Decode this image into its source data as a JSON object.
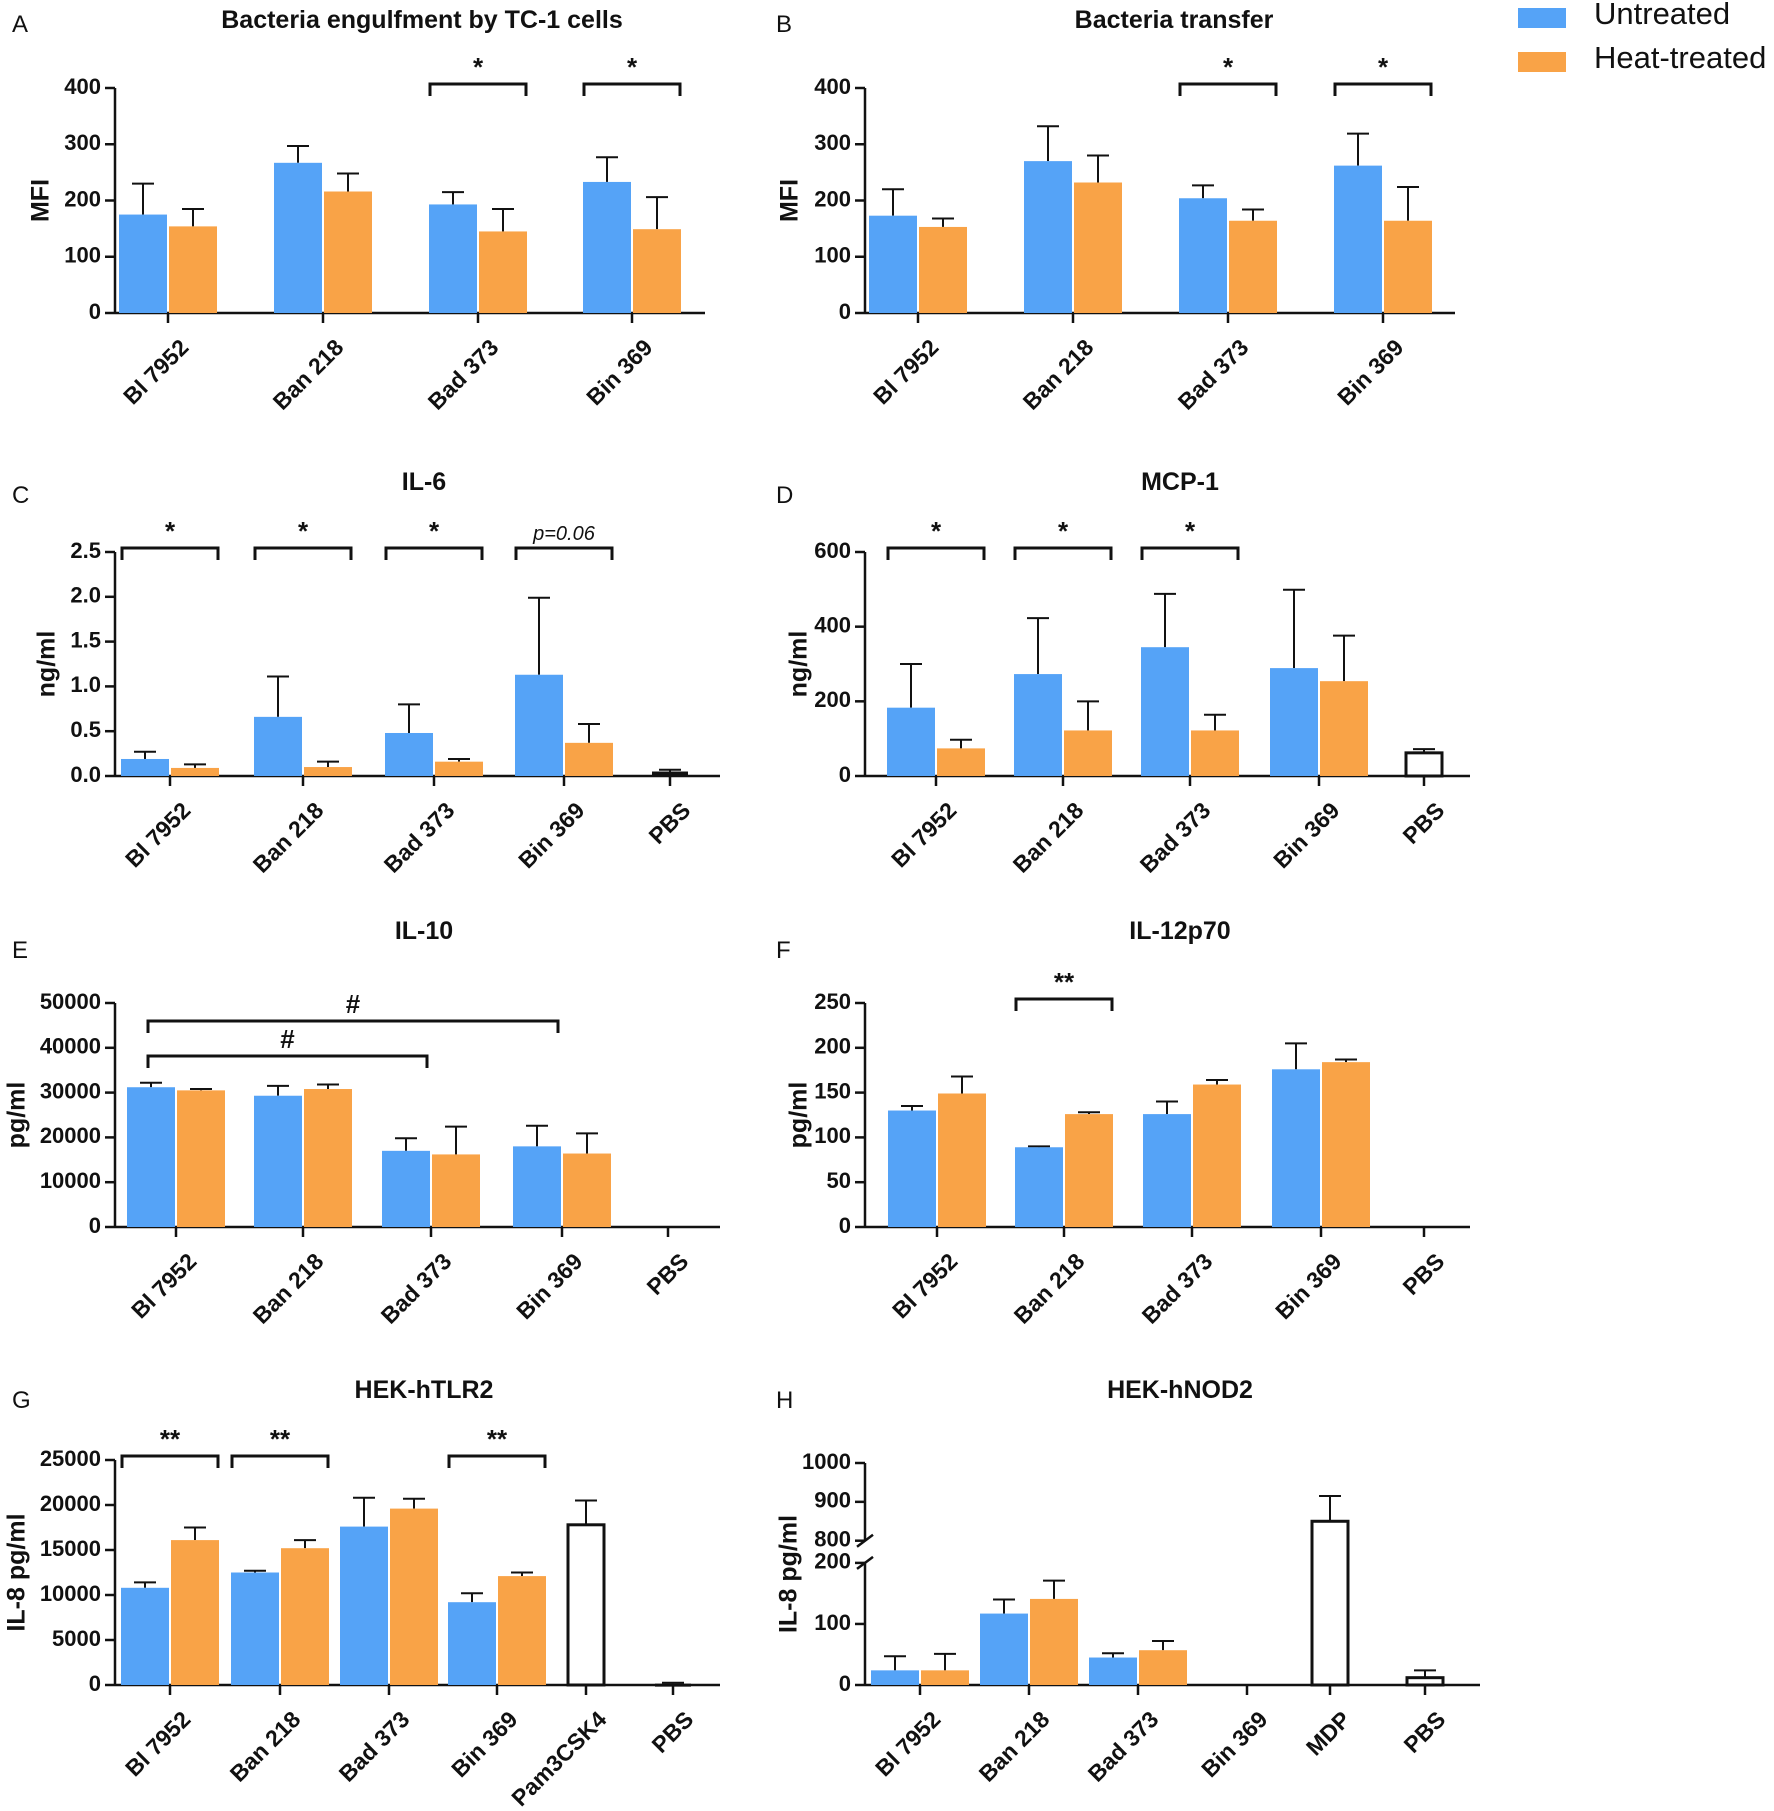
{
  "colors": {
    "untreated": "#55a3f7",
    "heat_treated": "#f9a347",
    "control": "#ffffff",
    "text": "#111111"
  },
  "legend": {
    "untreated_label": "Untreated",
    "heat_treated_label": "Heat-treated"
  },
  "chart_data": [
    {
      "panel": "A",
      "type": "bar",
      "title": "Bacteria engulfment by TC-1 cells",
      "ylabel": "MFI",
      "ylim": [
        0,
        400
      ],
      "yticks": [
        "0",
        "100",
        "200",
        "300",
        "400"
      ],
      "ytick_values": [
        0,
        100,
        200,
        300,
        400
      ],
      "categories": [
        "Bl 7952",
        "Ban 218",
        "Bad 373",
        "Bin 369"
      ],
      "series": [
        {
          "name": "Untreated",
          "values": [
            175,
            267,
            193,
            233
          ],
          "errors": [
            55,
            30,
            22,
            44
          ]
        },
        {
          "name": "Heat-treated",
          "values": [
            154,
            216,
            145,
            149
          ],
          "errors": [
            31,
            32,
            40,
            57
          ]
        }
      ],
      "annotations": [
        {
          "category": 2,
          "label": "*"
        },
        {
          "category": 3,
          "label": "*"
        }
      ]
    },
    {
      "panel": "B",
      "type": "bar",
      "title": "Bacteria transfer",
      "ylabel": "MFI",
      "ylim": [
        0,
        400
      ],
      "yticks": [
        "0",
        "100",
        "200",
        "300",
        "400"
      ],
      "ytick_values": [
        0,
        100,
        200,
        300,
        400
      ],
      "categories": [
        "Bl 7952",
        "Ban 218",
        "Bad 373",
        "Bin 369"
      ],
      "series": [
        {
          "name": "Untreated",
          "values": [
            173,
            270,
            204,
            262
          ],
          "errors": [
            47,
            62,
            23,
            57
          ]
        },
        {
          "name": "Heat-treated",
          "values": [
            153,
            232,
            164,
            164
          ],
          "errors": [
            15,
            48,
            20,
            60
          ]
        }
      ],
      "annotations": [
        {
          "category": 2,
          "label": "*"
        },
        {
          "category": 3,
          "label": "*"
        }
      ]
    },
    {
      "panel": "C",
      "type": "bar",
      "title": "IL-6",
      "ylabel": "ng/ml",
      "ylim": [
        0,
        2.5
      ],
      "yticks": [
        "0.0",
        "0.5",
        "1.0",
        "1.5",
        "2.0",
        "2.5"
      ],
      "ytick_values": [
        0,
        0.5,
        1,
        1.5,
        2,
        2.5
      ],
      "categories": [
        "Bl 7952",
        "Ban 218",
        "Bad 373",
        "Bin 369",
        "PBS"
      ],
      "series": [
        {
          "name": "Untreated",
          "values": [
            0.19,
            0.66,
            0.48,
            1.13,
            null
          ],
          "errors": [
            0.08,
            0.45,
            0.32,
            0.86,
            null
          ]
        },
        {
          "name": "Heat-treated",
          "values": [
            0.09,
            0.1,
            0.16,
            0.37,
            null
          ],
          "errors": [
            0.04,
            0.06,
            0.03,
            0.21,
            null
          ]
        }
      ],
      "controls": [
        {
          "category": 4,
          "value": 0.05,
          "error": 0.02,
          "style": "filled"
        }
      ],
      "annotations": [
        {
          "category": 0,
          "label": "*"
        },
        {
          "category": 1,
          "label": "*"
        },
        {
          "category": 2,
          "label": "*"
        },
        {
          "category": 3,
          "label": "p=0.06"
        }
      ]
    },
    {
      "panel": "D",
      "type": "bar",
      "title": "MCP-1",
      "ylabel": "ng/ml",
      "ylim": [
        0,
        600
      ],
      "yticks": [
        "0",
        "200",
        "400",
        "600"
      ],
      "ytick_values": [
        0,
        200,
        400,
        600
      ],
      "categories": [
        "Bl 7952",
        "Ban 218",
        "Bad 373",
        "Bin 369",
        "PBS"
      ],
      "series": [
        {
          "name": "Untreated",
          "values": [
            183,
            273,
            345,
            289,
            null
          ],
          "errors": [
            117,
            150,
            143,
            210,
            null
          ]
        },
        {
          "name": "Heat-treated",
          "values": [
            74,
            122,
            122,
            254,
            null
          ],
          "errors": [
            23,
            78,
            42,
            122,
            null
          ]
        }
      ],
      "controls": [
        {
          "category": 4,
          "value": 62,
          "error": 10,
          "style": "open"
        }
      ],
      "annotations": [
        {
          "category": 0,
          "label": "*"
        },
        {
          "category": 1,
          "label": "*"
        },
        {
          "category": 2,
          "label": "*"
        }
      ]
    },
    {
      "panel": "E",
      "type": "bar",
      "title": "IL-10",
      "ylabel": "pg/ml",
      "ylim": [
        0,
        50000
      ],
      "yticks": [
        "0",
        "10000",
        "20000",
        "30000",
        "40000",
        "50000"
      ],
      "ytick_values": [
        0,
        10000,
        20000,
        30000,
        40000,
        50000
      ],
      "categories": [
        "Bl 7952",
        "Ban 218",
        "Bad 373",
        "Bin 369",
        "PBS"
      ],
      "series": [
        {
          "name": "Untreated",
          "values": [
            31200,
            29300,
            17000,
            18000,
            null
          ],
          "errors": [
            1000,
            2200,
            2800,
            4600,
            null
          ]
        },
        {
          "name": "Heat-treated",
          "values": [
            30500,
            30800,
            16200,
            16400,
            null
          ],
          "errors": [
            300,
            1000,
            6200,
            4500,
            null
          ]
        }
      ],
      "annotations": [
        {
          "from_category": 0,
          "to_category": 2,
          "label": "#"
        },
        {
          "from_category": 0,
          "to_category": 3,
          "label": "#"
        }
      ]
    },
    {
      "panel": "F",
      "type": "bar",
      "title": "IL-12p70",
      "ylabel": "pg/ml",
      "ylim": [
        0,
        250
      ],
      "yticks": [
        "0",
        "50",
        "100",
        "150",
        "200",
        "250"
      ],
      "ytick_values": [
        0,
        50,
        100,
        150,
        200,
        250
      ],
      "categories": [
        "Bl 7952",
        "Ban 218",
        "Bad 373",
        "Bin 369",
        "PBS"
      ],
      "series": [
        {
          "name": "Untreated",
          "values": [
            130,
            89,
            126,
            176,
            null
          ],
          "errors": [
            5,
            1,
            14,
            29,
            null
          ]
        },
        {
          "name": "Heat-treated",
          "values": [
            149,
            126,
            159,
            184,
            null
          ],
          "errors": [
            19,
            2,
            5,
            3,
            null
          ]
        }
      ],
      "annotations": [
        {
          "category": 1,
          "label": "**"
        }
      ]
    },
    {
      "panel": "G",
      "type": "bar",
      "title": "HEK-hTLR2",
      "ylabel": "IL-8 pg/ml",
      "ylim": [
        0,
        25000
      ],
      "yticks": [
        "0",
        "5000",
        "10000",
        "15000",
        "20000",
        "25000"
      ],
      "ytick_values": [
        0,
        5000,
        10000,
        15000,
        20000,
        25000
      ],
      "categories": [
        "Bl 7952",
        "Ban 218",
        "Bad 373",
        "Bin 369",
        "Pam3CSK4",
        "PBS"
      ],
      "series": [
        {
          "name": "Untreated",
          "values": [
            10800,
            12500,
            17600,
            9200,
            null,
            null
          ],
          "errors": [
            600,
            200,
            3200,
            1000,
            null,
            null
          ]
        },
        {
          "name": "Heat-treated",
          "values": [
            16100,
            15200,
            19600,
            12100,
            null,
            null
          ],
          "errors": [
            1400,
            900,
            1100,
            400,
            null,
            null
          ]
        }
      ],
      "controls": [
        {
          "category": 4,
          "value": 17800,
          "error": 2700,
          "style": "open"
        },
        {
          "category": 5,
          "value": 150,
          "error": 100,
          "style": "filled"
        }
      ],
      "annotations": [
        {
          "category": 0,
          "label": "**"
        },
        {
          "category": 1,
          "label": "**"
        },
        {
          "category": 3,
          "label": "**"
        }
      ]
    },
    {
      "panel": "H",
      "type": "bar",
      "title": "HEK-hNOD2",
      "ylabel": "IL-8 pg/ml",
      "ylim": [
        0,
        1000
      ],
      "axis_break": [
        200,
        800
      ],
      "yticks": [
        "0",
        "100",
        "200",
        "800",
        "900",
        "1000"
      ],
      "ytick_values": [
        0,
        100,
        200,
        800,
        900,
        1000
      ],
      "categories": [
        "Bl 7952",
        "Ban 218",
        "Bad 373",
        "Bin 369",
        "MDP",
        "PBS"
      ],
      "series": [
        {
          "name": "Untreated",
          "values": [
            24,
            117,
            45,
            null,
            null,
            null
          ],
          "errors": [
            23,
            23,
            7,
            null,
            null,
            null
          ]
        },
        {
          "name": "Heat-treated",
          "values": [
            24,
            141,
            57,
            null,
            null,
            null
          ],
          "errors": [
            27,
            30,
            15,
            null,
            null,
            null
          ]
        }
      ],
      "controls": [
        {
          "category": 4,
          "value": 850,
          "error": 65,
          "style": "open"
        },
        {
          "category": 5,
          "value": 12,
          "error": 12,
          "style": "open"
        }
      ],
      "annotations": []
    }
  ]
}
